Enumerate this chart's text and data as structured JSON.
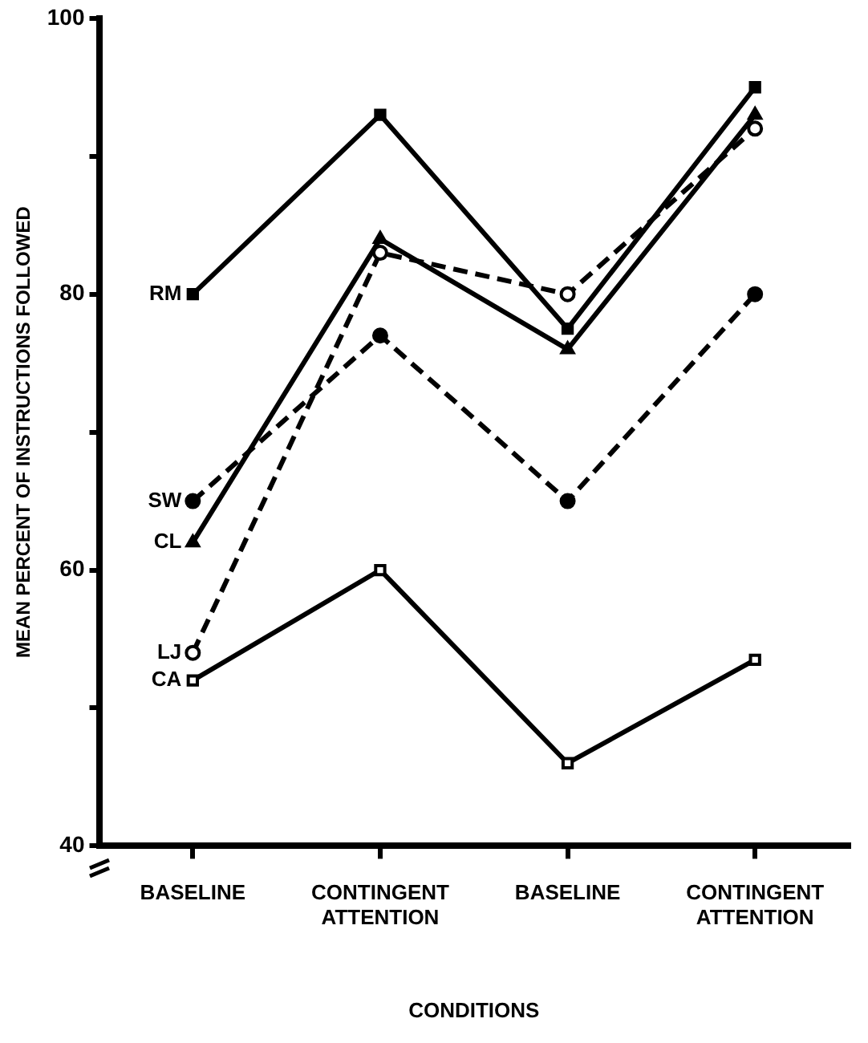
{
  "chart_data": {
    "type": "line",
    "xlabel": "CONDITIONS",
    "ylabel": "MEAN PERCENT OF INSTRUCTIONS FOLLOWED",
    "categories": [
      "BASELINE",
      "CONTINGENT ATTENTION",
      "BASELINE",
      "CONTINGENT ATTENTION"
    ],
    "ylim": [
      40,
      100
    ],
    "yticks": [
      40,
      {
        "value": 50,
        "label": null
      },
      60,
      {
        "value": 70,
        "label": null
      },
      80,
      {
        "value": 90,
        "label": null
      },
      100
    ],
    "grid": false,
    "legend": false,
    "series": [
      {
        "name": "RM",
        "color": "#000000",
        "marker": "square",
        "line_style": "solid",
        "values": [
          80,
          93,
          77.5,
          95
        ]
      },
      {
        "name": "SW",
        "color": "#000000",
        "marker": "circle",
        "line_style": "dashed",
        "values": [
          65,
          77,
          65,
          80
        ]
      },
      {
        "name": "CL",
        "color": "#000000",
        "marker": "triangle",
        "line_style": "solid",
        "values": [
          62,
          84,
          76,
          93
        ]
      },
      {
        "name": "LJ",
        "color": "#000000",
        "marker": "circle-open",
        "line_style": "dashed",
        "values": [
          54,
          83,
          80,
          92
        ]
      },
      {
        "name": "CA",
        "color": "#000000",
        "marker": "square-open",
        "line_style": "solid",
        "values": [
          52,
          60,
          46,
          53.5
        ]
      }
    ]
  }
}
